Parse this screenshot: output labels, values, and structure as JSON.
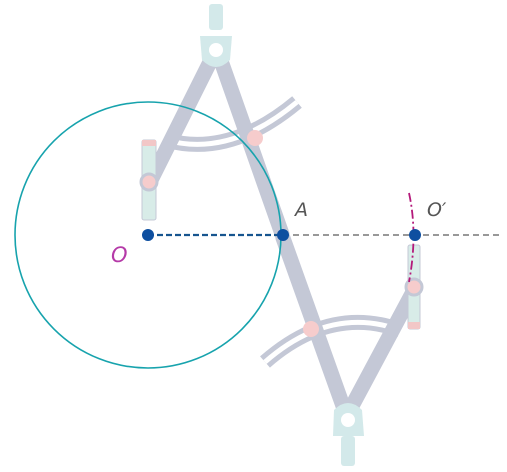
{
  "labels": {
    "point_o": "O",
    "point_a": "A",
    "point_o_prime": "O′"
  },
  "colors": {
    "circle": "#17a3ad",
    "point": "#0e4fa0",
    "segment_oa": "#17558f",
    "line": "#8a8a8a",
    "arc_mark": "#b4197a",
    "label_o": "#b53aa8",
    "label_text": "#555555",
    "compass_arm": "#c4c8d6",
    "compass_head": "#d3e9ea",
    "compass_joint": "#f6cccc",
    "pencil": "#d8ece8",
    "pencil_cap": "#f2c7c7"
  },
  "icons": {
    "compass_top": "drawing-compass-icon",
    "compass_bottom": "drawing-compass-icon"
  }
}
